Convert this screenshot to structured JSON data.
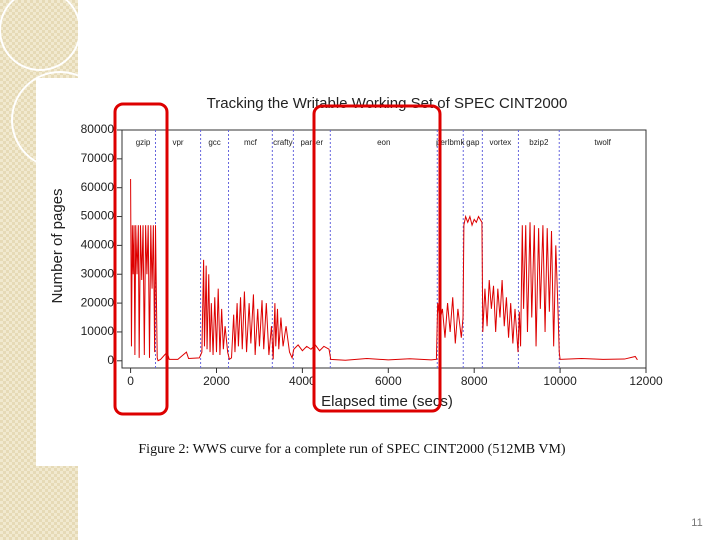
{
  "chart_data": {
    "type": "line",
    "title": "Tracking the Writable Working Set of SPEC CINT2000",
    "xlabel": "Elapsed time (secs)",
    "ylabel": "Number of pages",
    "xlim": [
      -200,
      12000
    ],
    "ylim": [
      -2500,
      80000
    ],
    "xticks": [
      0,
      2000,
      4000,
      6000,
      8000,
      10000,
      12000
    ],
    "yticks": [
      0,
      10000,
      20000,
      30000,
      40000,
      50000,
      60000,
      70000,
      80000
    ],
    "region_labels": [
      "gzip",
      "vpr",
      "gcc",
      "mcf",
      "crafty",
      "parser",
      "eon",
      "perlbmk",
      "gap",
      "vortex",
      "bzip2",
      "twolf"
    ],
    "boundaries": [
      580,
      1630,
      2280,
      3300,
      3790,
      4650,
      7140,
      7745,
      8190,
      9030,
      9980
    ],
    "x": [
      0,
      20,
      40,
      60,
      80,
      100,
      120,
      150,
      180,
      200,
      230,
      260,
      290,
      320,
      350,
      380,
      410,
      440,
      470,
      500,
      530,
      560,
      580,
      600,
      620,
      640,
      700,
      850,
      900,
      1100,
      1300,
      1350,
      1600,
      1660,
      1700,
      1720,
      1760,
      1780,
      1820,
      1850,
      1880,
      1920,
      1960,
      2000,
      2040,
      2080,
      2120,
      2160,
      2200,
      2260,
      2300,
      2350,
      2400,
      2430,
      2480,
      2510,
      2560,
      2600,
      2650,
      2700,
      2760,
      2800,
      2860,
      2900,
      2960,
      3000,
      3060,
      3100,
      3160,
      3220,
      3280,
      3320,
      3360,
      3380,
      3420,
      3450,
      3500,
      3550,
      3620,
      3700,
      3760,
      3800,
      3900,
      4000,
      4100,
      4200,
      4300,
      4400,
      4500,
      4620,
      4660,
      5000,
      5500,
      6000,
      6500,
      7000,
      7120,
      7150,
      7200,
      7260,
      7320,
      7380,
      7440,
      7500,
      7560,
      7620,
      7700,
      7740,
      7760,
      7800,
      7850,
      7900,
      7950,
      8000,
      8050,
      8100,
      8180,
      8200,
      8250,
      8300,
      8350,
      8400,
      8450,
      8500,
      8550,
      8600,
      8650,
      8700,
      8750,
      8800,
      8850,
      8900,
      8950,
      9020,
      9050,
      9080,
      9120,
      9150,
      9200,
      9240,
      9300,
      9340,
      9400,
      9440,
      9500,
      9540,
      9600,
      9650,
      9700,
      9750,
      9800,
      9850,
      9900,
      9950,
      9980,
      10000,
      10500,
      11000,
      11500,
      11750,
      11800
    ],
    "series": [
      {
        "color": "#dd0000",
        "values": [
          63000,
          5000,
          47000,
          30000,
          47000,
          2000,
          47000,
          30000,
          47000,
          1000,
          47000,
          28000,
          47000,
          2000,
          47000,
          30000,
          47000,
          1000,
          47000,
          25000,
          47000,
          3000,
          47000,
          23000,
          1000,
          0,
          500,
          3000,
          500,
          500,
          3000,
          800,
          1000,
          3000,
          35000,
          5000,
          33000,
          4000,
          30000,
          3000,
          20000,
          2000,
          22000,
          3000,
          25000,
          2000,
          18000,
          4000,
          12000,
          3000,
          500,
          1000,
          16000,
          3000,
          20000,
          5000,
          22000,
          4000,
          24000,
          3000,
          20000,
          6000,
          23000,
          2000,
          18000,
          5000,
          21000,
          4000,
          20000,
          2000,
          12000,
          500,
          20000,
          5000,
          18000,
          4000,
          15000,
          5000,
          12000,
          3000,
          1000,
          4000,
          5500,
          3500,
          5000,
          4000,
          5500,
          3500,
          5000,
          4000,
          500,
          200,
          800,
          300,
          700,
          300,
          500,
          20000,
          14000,
          18000,
          8000,
          20000,
          10000,
          22000,
          6000,
          18000,
          8000,
          15000,
          47000,
          50000,
          48000,
          50000,
          47000,
          49000,
          48000,
          50000,
          48000,
          10000,
          25000,
          12000,
          28000,
          18000,
          26000,
          10000,
          25000,
          15000,
          28000,
          12000,
          22000,
          8000,
          20000,
          6000,
          18000,
          3000,
          17000,
          5000,
          47000,
          18000,
          47000,
          10000,
          48000,
          15000,
          47000,
          5000,
          46000,
          18000,
          47000,
          10000,
          46000,
          17000,
          45000,
          5000,
          40000,
          18000,
          3000,
          500,
          800,
          500,
          600,
          1500,
          300
        ]
      }
    ]
  },
  "caption": "Figure 2: WWS curve for a complete run of SPEC CINT2000 (512MB VM)",
  "slide_number": "11"
}
